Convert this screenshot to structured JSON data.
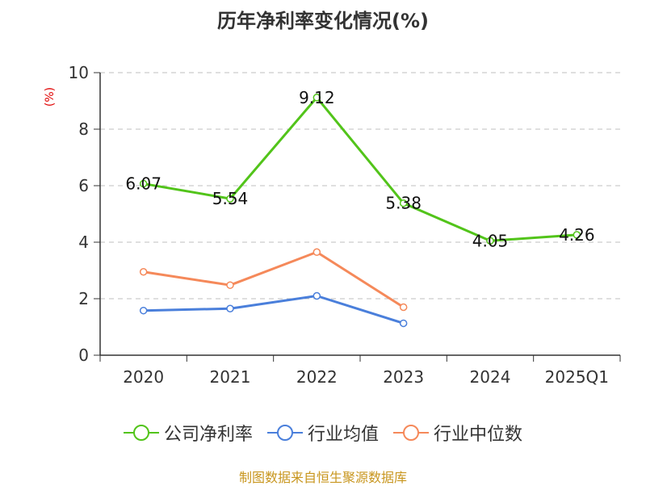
{
  "title": "历年净利率变化情况(%)",
  "y_unit_label": "(%)",
  "source": "制图数据来自恒生聚源数据库",
  "colors": {
    "net_margin": "#52c41a",
    "industry_avg": "#4a7fdb",
    "industry_median": "#f5895a",
    "unit_label": "#e00000",
    "source": "#c8961e",
    "grid": "#bfbfbf",
    "axis": "#333333"
  },
  "chart_data": {
    "type": "line",
    "categories": [
      "2020",
      "2021",
      "2022",
      "2023",
      "2024",
      "2025Q1"
    ],
    "ylim": [
      0,
      10
    ],
    "yticks": [
      0,
      2,
      4,
      6,
      8,
      10
    ],
    "grid": true,
    "legend_position": "bottom",
    "series": [
      {
        "name": "公司净利率",
        "values": [
          6.07,
          5.54,
          9.12,
          5.38,
          4.05,
          4.26
        ],
        "labels": [
          "6.07",
          "5.54",
          "9.12",
          "5.38",
          "4.05",
          "4.26"
        ]
      },
      {
        "name": "行业均值",
        "values": [
          1.58,
          1.65,
          2.1,
          1.13,
          null,
          null
        ]
      },
      {
        "name": "行业中位数",
        "values": [
          2.95,
          2.48,
          3.65,
          1.7,
          null,
          null
        ]
      }
    ]
  }
}
